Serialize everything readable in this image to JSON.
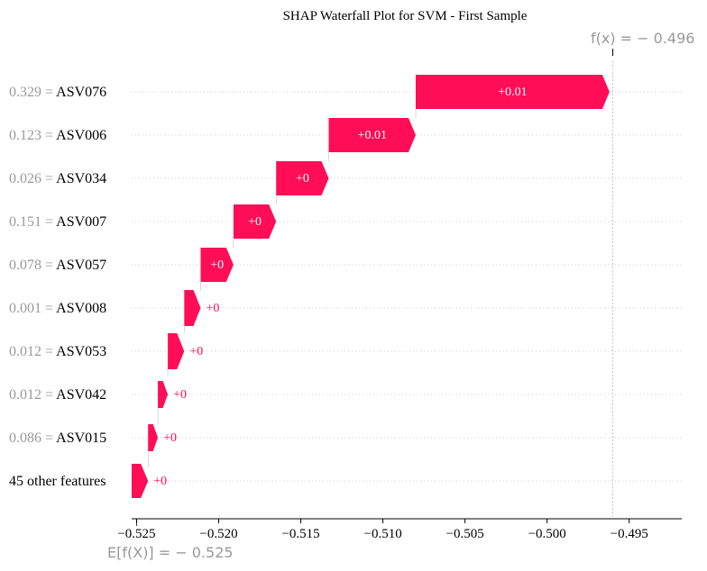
{
  "chart_data": {
    "type": "bar",
    "title": "SHAP Waterfall Plot for SVM - First Sample",
    "fx_label": "f(x) = − 0.496",
    "ex_label": "E[f(X)] = − 0.525",
    "base_value": -0.525,
    "output_value": -0.496,
    "xlim": [
      -0.5253,
      -0.4918
    ],
    "xticks": [
      -0.525,
      -0.52,
      -0.515,
      -0.51,
      -0.505,
      -0.5,
      -0.495
    ],
    "xtick_labels": [
      "−0.525",
      "−0.520",
      "−0.515",
      "−0.510",
      "−0.505",
      "−0.500",
      "−0.495"
    ],
    "colors": {
      "positive": "#ff0d57",
      "feature_value": "#999999",
      "feature_name": "#000000",
      "grid": "#cccccc",
      "reference_line": "#bbbbbb"
    },
    "features": [
      {
        "value_label": "0.329 =",
        "name": "ASV076",
        "start": -0.508,
        "end": -0.4962,
        "label": "+0.01"
      },
      {
        "value_label": "0.123 =",
        "name": "ASV006",
        "start": -0.5133,
        "end": -0.508,
        "label": "+0.01"
      },
      {
        "value_label": "0.026 =",
        "name": "ASV034",
        "start": -0.5165,
        "end": -0.5133,
        "label": "+0"
      },
      {
        "value_label": "0.151 =",
        "name": "ASV007",
        "start": -0.5191,
        "end": -0.5165,
        "label": "+0"
      },
      {
        "value_label": "0.078 =",
        "name": "ASV057",
        "start": -0.5211,
        "end": -0.5191,
        "label": "+0"
      },
      {
        "value_label": "0.001 =",
        "name": "ASV008",
        "start": -0.5221,
        "end": -0.5211,
        "label": "+0"
      },
      {
        "value_label": "0.012 =",
        "name": "ASV053",
        "start": -0.5231,
        "end": -0.5221,
        "label": "+0"
      },
      {
        "value_label": "0.012 =",
        "name": "ASV042",
        "start": -0.5237,
        "end": -0.5231,
        "label": "+0"
      },
      {
        "value_label": "0.086 =",
        "name": "ASV015",
        "start": -0.5243,
        "end": -0.5237,
        "label": "+0"
      },
      {
        "value_label": "",
        "name": "45 other features",
        "start": -0.5253,
        "end": -0.5243,
        "label": "+0"
      }
    ]
  }
}
